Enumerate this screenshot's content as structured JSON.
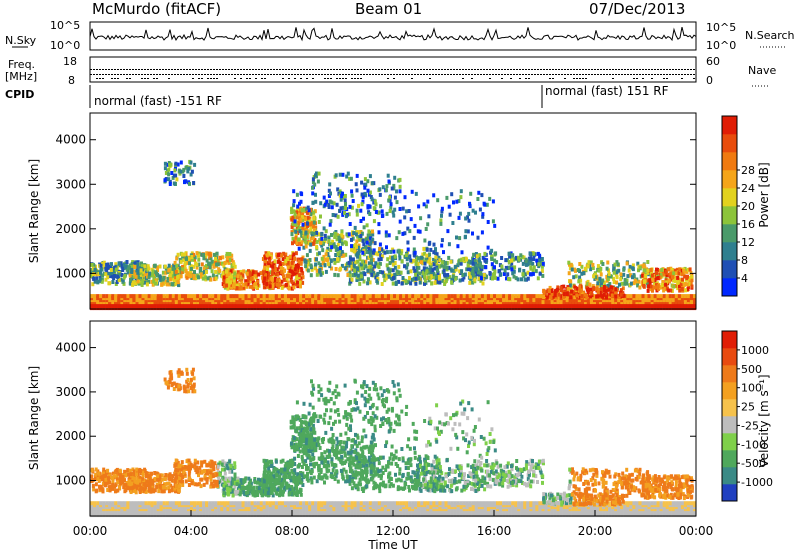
{
  "header": {
    "station": "McMurdo (fitACF)",
    "beam": "Beam 01",
    "date": "07/Dec/2013"
  },
  "noise_panel": {
    "left_label": "N.Sky",
    "right_label": "N.Search",
    "left_ticks": [
      "10^5",
      "10^0"
    ],
    "right_ticks": [
      "10^5",
      "10^0"
    ]
  },
  "freq_panel": {
    "left_label_1": "Freq.",
    "left_label_2": "[MHz]",
    "left_ticks": [
      "18",
      "8"
    ],
    "right_label": "Nave",
    "right_ticks": [
      "60",
      "0"
    ]
  },
  "cpid": {
    "label": "CPID",
    "modes": [
      {
        "text": "normal (fast) -151 RF",
        "start_hour": 0
      },
      {
        "text": "normal (fast) 151 RF",
        "start_hour": 18
      }
    ]
  },
  "x_axis": {
    "title": "Time UT",
    "ticks": [
      "00:00",
      "04:00",
      "08:00",
      "12:00",
      "16:00",
      "20:00",
      "00:00"
    ]
  },
  "chart_data": [
    {
      "type": "heatmap",
      "name": "power",
      "ylabel": "Slant Range [km]",
      "y_ticks": [
        1000,
        2000,
        3000,
        4000
      ],
      "ylim": [
        200,
        4600
      ],
      "xlim_hours": [
        0,
        24
      ],
      "colorbar": {
        "label": "Power [dB]",
        "ticks": [
          "4",
          "8",
          "12",
          "16",
          "20",
          "24",
          "28"
        ],
        "colors": [
          "#0028ff",
          "#1f4fb4",
          "#2f7f8f",
          "#4a9a6a",
          "#8cc43a",
          "#e2d21f",
          "#f5a51a",
          "#f07a10",
          "#e84c0c",
          "#e01d05"
        ]
      }
    },
    {
      "type": "heatmap",
      "name": "velocity",
      "ylabel": "Slant Range [km]",
      "y_ticks": [
        1000,
        2000,
        3000,
        4000
      ],
      "ylim": [
        200,
        4600
      ],
      "xlim_hours": [
        0,
        24
      ],
      "colorbar": {
        "label": "Velocity [m s⁻¹]",
        "ticks": [
          "1000",
          "500",
          "100",
          "25",
          "-25",
          "-100",
          "-500",
          "-1000"
        ],
        "colors": [
          "#2040c0",
          "#3a8a86",
          "#4fa85c",
          "#7fd04a",
          "#bdbdbd",
          "#f6c24c",
          "#f3a020",
          "#ee7a1a",
          "#e84a10",
          "#e01d05"
        ]
      }
    }
  ]
}
